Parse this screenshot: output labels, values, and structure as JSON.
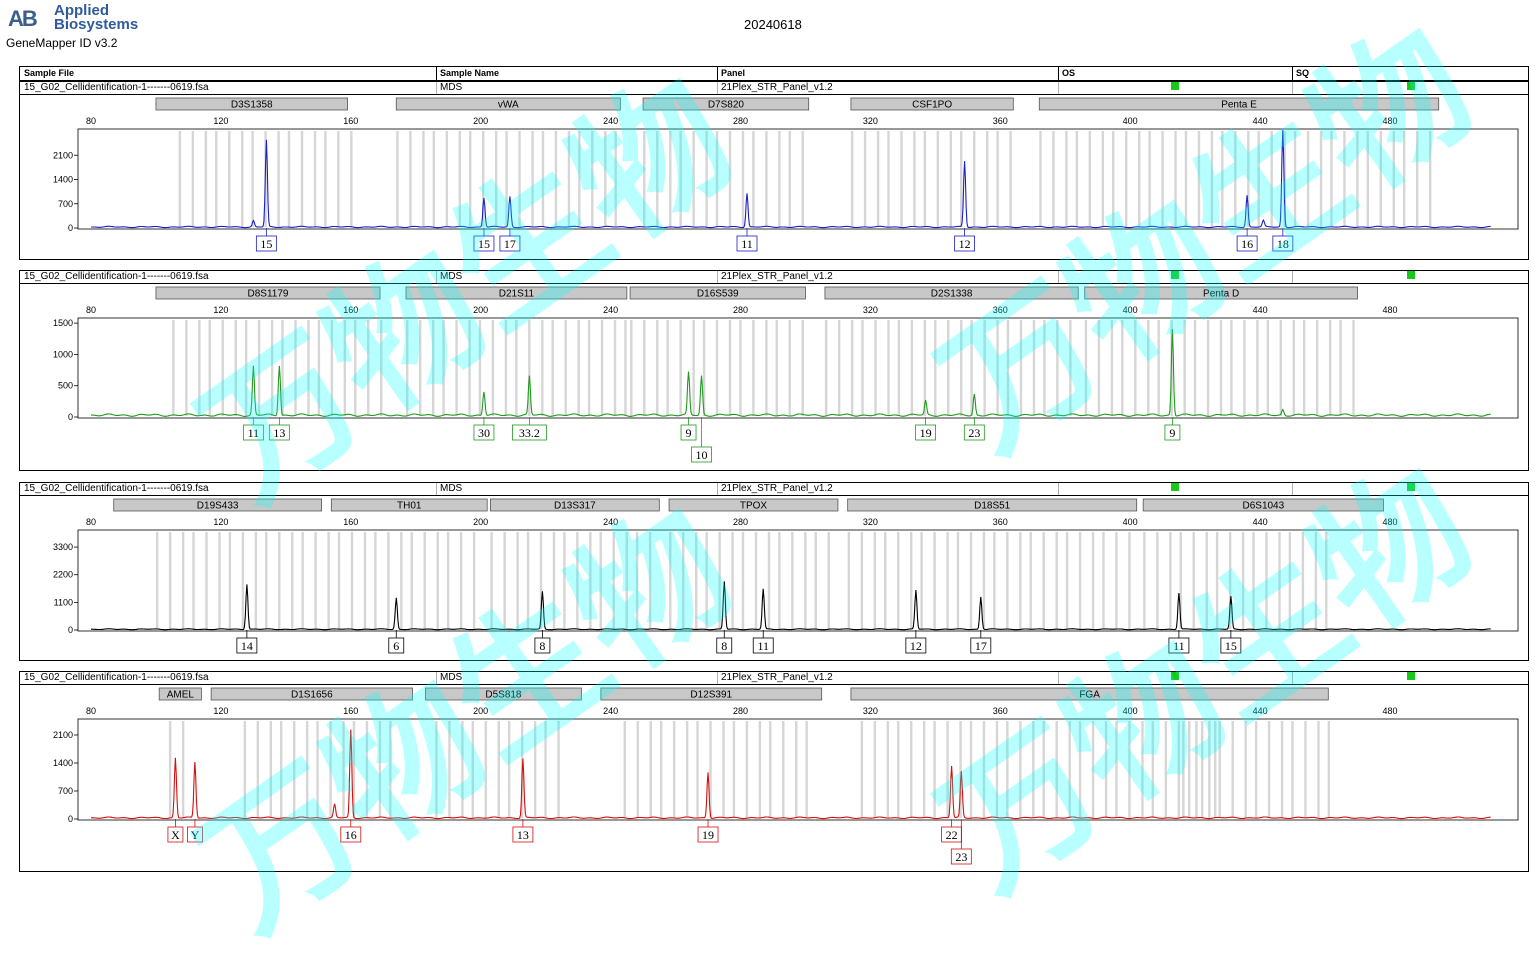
{
  "brand": {
    "logo_mark": "AB",
    "name_line1": "Applied",
    "name_line2": "Biosystems",
    "software": "GeneMapper ID v3.2"
  },
  "run_date": "20240618",
  "header": {
    "sample_file": "Sample File",
    "sample_name": "Sample Name",
    "panel": "Panel",
    "os": "OS",
    "sq": "SQ"
  },
  "watermark": "万物生物",
  "chart_data": [
    {
      "type": "line",
      "sample_file": "15_G02_Cellidentification-1-------0619.fsa",
      "sample_name": "MDS",
      "panel": "21Plex_STR_Panel_v1.2",
      "color": "#1a1fc7",
      "x_ticks": [
        80,
        120,
        160,
        200,
        240,
        280,
        320,
        360,
        400,
        440,
        480
      ],
      "xlim": [
        80,
        511
      ],
      "y_ticks": [
        0,
        700,
        1400,
        2100
      ],
      "ylim": [
        0,
        2800
      ],
      "loci": [
        {
          "name": "D3S1358",
          "start": 100,
          "end": 159
        },
        {
          "name": "vWA",
          "start": 174,
          "end": 243
        },
        {
          "name": "D7S820",
          "start": 250,
          "end": 301
        },
        {
          "name": "CSF1PO",
          "start": 314,
          "end": 364
        },
        {
          "name": "Penta E",
          "start": 372,
          "end": 495
        }
      ],
      "bins": [
        [
          107,
          160
        ],
        [
          174,
          243
        ],
        [
          250,
          301
        ],
        [
          314,
          364
        ],
        [
          372,
          495
        ]
      ],
      "peaks": [
        {
          "x": 130,
          "h": 180
        },
        {
          "x": 134,
          "h": 2500
        },
        {
          "x": 201,
          "h": 850
        },
        {
          "x": 209,
          "h": 880
        },
        {
          "x": 282,
          "h": 980
        },
        {
          "x": 349,
          "h": 1900
        },
        {
          "x": 436,
          "h": 920
        },
        {
          "x": 441,
          "h": 180
        },
        {
          "x": 447,
          "h": 2800
        }
      ],
      "calls": [
        {
          "label": "15",
          "x": 134,
          "row": 0
        },
        {
          "label": "15",
          "x": 201,
          "row": 0
        },
        {
          "label": "17",
          "x": 209,
          "row": 0
        },
        {
          "label": "11",
          "x": 282,
          "row": 0
        },
        {
          "label": "12",
          "x": 349,
          "row": 0
        },
        {
          "label": "16",
          "x": 436,
          "row": 0
        },
        {
          "label": "18",
          "x": 447,
          "row": 0
        }
      ]
    },
    {
      "type": "line",
      "sample_file": "15_G02_Cellidentification-1-------0619.fsa",
      "sample_name": "MDS",
      "panel": "21Plex_STR_Panel_v1.2",
      "color": "#1f9a1f",
      "x_ticks": [
        80,
        120,
        160,
        200,
        240,
        280,
        320,
        360,
        400,
        440,
        480
      ],
      "xlim": [
        80,
        511
      ],
      "y_ticks": [
        0,
        500,
        1000,
        1500
      ],
      "ylim": [
        0,
        1550
      ],
      "loci": [
        {
          "name": "D8S1179",
          "start": 100,
          "end": 169
        },
        {
          "name": "D21S11",
          "start": 177,
          "end": 245
        },
        {
          "name": "D16S539",
          "start": 246,
          "end": 300
        },
        {
          "name": "D2S1338",
          "start": 306,
          "end": 384
        },
        {
          "name": "Penta D",
          "start": 386,
          "end": 470
        }
      ],
      "bins": [
        [
          105,
          170
        ],
        [
          177,
          245
        ],
        [
          246,
          300
        ],
        [
          306,
          384
        ],
        [
          386,
          470
        ]
      ],
      "peaks": [
        {
          "x": 130,
          "h": 780
        },
        {
          "x": 138,
          "h": 800
        },
        {
          "x": 201,
          "h": 380
        },
        {
          "x": 215,
          "h": 620
        },
        {
          "x": 264,
          "h": 680
        },
        {
          "x": 268,
          "h": 630
        },
        {
          "x": 337,
          "h": 230
        },
        {
          "x": 352,
          "h": 340
        },
        {
          "x": 413,
          "h": 1380
        },
        {
          "x": 447,
          "h": 90
        }
      ],
      "calls": [
        {
          "label": "11",
          "x": 130,
          "row": 0
        },
        {
          "label": "13",
          "x": 138,
          "row": 0
        },
        {
          "label": "30",
          "x": 201,
          "row": 0
        },
        {
          "label": "33.2",
          "x": 215,
          "row": 0
        },
        {
          "label": "9",
          "x": 264,
          "row": 0
        },
        {
          "label": "10",
          "x": 268,
          "row": 1
        },
        {
          "label": "19",
          "x": 337,
          "row": 0
        },
        {
          "label": "23",
          "x": 352,
          "row": 0
        },
        {
          "label": "9",
          "x": 413,
          "row": 0
        }
      ]
    },
    {
      "type": "line",
      "sample_file": "15_G02_Cellidentification-1-------0619.fsa",
      "sample_name": "MDS",
      "panel": "21Plex_STR_Panel_v1.2",
      "color": "#000000",
      "x_ticks": [
        80,
        120,
        160,
        200,
        240,
        280,
        320,
        360,
        400,
        440,
        480
      ],
      "xlim": [
        80,
        511
      ],
      "y_ticks": [
        0,
        1100,
        2200,
        3300
      ],
      "ylim": [
        0,
        3900
      ],
      "loci": [
        {
          "name": "D19S433",
          "start": 87,
          "end": 151
        },
        {
          "name": "TH01",
          "start": 154,
          "end": 202
        },
        {
          "name": "D13S317",
          "start": 203,
          "end": 255
        },
        {
          "name": "TPOX",
          "start": 258,
          "end": 310
        },
        {
          "name": "D18S51",
          "start": 313,
          "end": 402
        },
        {
          "name": "D6S1043",
          "start": 404,
          "end": 478
        }
      ],
      "bins": [
        [
          100,
          200
        ],
        [
          203,
          255
        ],
        [
          258,
          310
        ],
        [
          313,
          400
        ],
        [
          404,
          463
        ]
      ],
      "peaks": [
        {
          "x": 128,
          "h": 1800
        },
        {
          "x": 174,
          "h": 1250
        },
        {
          "x": 219,
          "h": 1500
        },
        {
          "x": 275,
          "h": 1900
        },
        {
          "x": 287,
          "h": 1600
        },
        {
          "x": 334,
          "h": 1550
        },
        {
          "x": 354,
          "h": 1300
        },
        {
          "x": 415,
          "h": 1450
        },
        {
          "x": 431,
          "h": 1300
        }
      ],
      "calls": [
        {
          "label": "14",
          "x": 128,
          "row": 0
        },
        {
          "label": "6",
          "x": 174,
          "row": 0
        },
        {
          "label": "8",
          "x": 219,
          "row": 0
        },
        {
          "label": "8",
          "x": 275,
          "row": 0
        },
        {
          "label": "11",
          "x": 287,
          "row": 0
        },
        {
          "label": "12",
          "x": 334,
          "row": 0
        },
        {
          "label": "17",
          "x": 354,
          "row": 0
        },
        {
          "label": "11",
          "x": 415,
          "row": 0
        },
        {
          "label": "15",
          "x": 431,
          "row": 0
        }
      ]
    },
    {
      "type": "line",
      "sample_file": "15_G02_Cellidentification-1-------0619.fsa",
      "sample_name": "MDS",
      "panel": "21Plex_STR_Panel_v1.2",
      "color": "#d40f0f",
      "x_ticks": [
        80,
        120,
        160,
        200,
        240,
        280,
        320,
        360,
        400,
        440,
        480
      ],
      "xlim": [
        80,
        511
      ],
      "y_ticks": [
        0,
        700,
        1400,
        2100
      ],
      "ylim": [
        0,
        2450
      ],
      "loci": [
        {
          "name": "AMEL",
          "start": 101,
          "end": 114
        },
        {
          "name": "D1S1656",
          "start": 117,
          "end": 179
        },
        {
          "name": "D5S818",
          "start": 183,
          "end": 231
        },
        {
          "name": "D12S391",
          "start": 237,
          "end": 305
        },
        {
          "name": "FGA",
          "start": 314,
          "end": 461
        }
      ],
      "bins": [
        [
          104,
          111
        ],
        [
          127,
          174
        ],
        [
          186,
          227
        ],
        [
          244,
          300
        ],
        [
          317,
          428
        ],
        [
          416,
          463
        ]
      ],
      "peaks": [
        {
          "x": 106,
          "h": 1500
        },
        {
          "x": 112,
          "h": 1400
        },
        {
          "x": 155,
          "h": 340
        },
        {
          "x": 160,
          "h": 2200
        },
        {
          "x": 213,
          "h": 1480
        },
        {
          "x": 270,
          "h": 1150
        },
        {
          "x": 345,
          "h": 1300
        },
        {
          "x": 348,
          "h": 1150
        }
      ],
      "calls": [
        {
          "label": "X",
          "x": 106,
          "row": 0
        },
        {
          "label": "Y",
          "x": 112,
          "row": 0
        },
        {
          "label": "16",
          "x": 160,
          "row": 0
        },
        {
          "label": "13",
          "x": 213,
          "row": 0
        },
        {
          "label": "19",
          "x": 270,
          "row": 0
        },
        {
          "label": "22",
          "x": 345,
          "row": 0
        },
        {
          "label": "23",
          "x": 348,
          "row": 1
        }
      ]
    }
  ]
}
